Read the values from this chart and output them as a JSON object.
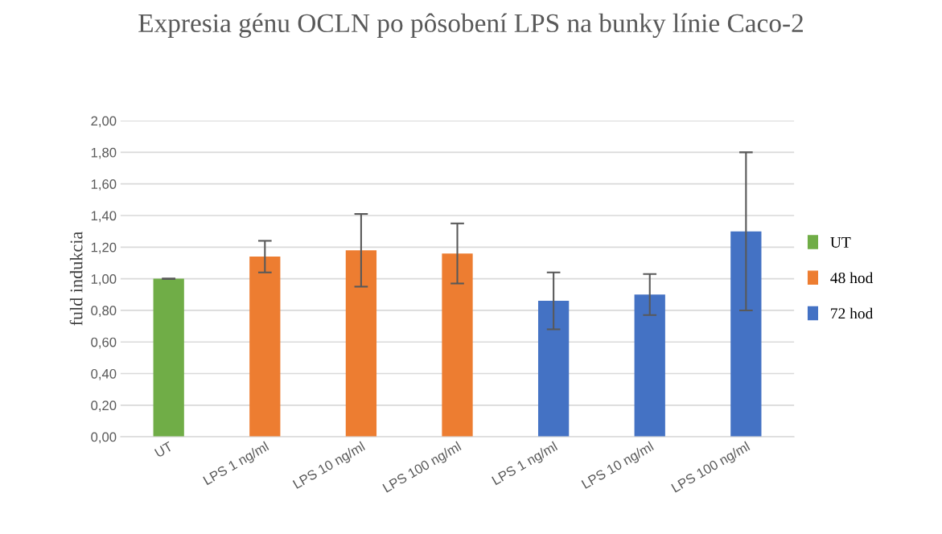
{
  "chart_data": {
    "type": "bar",
    "title": "Expresia génu OCLN po pôsobení LPS na bunky línie Caco-2",
    "ylabel": "fuld indukcia",
    "categories": [
      "UT",
      "LPS 1 ng/ml",
      "LPS 10 ng/ml",
      "LPS 100 ng/ml",
      "LPS 1 ng/ml",
      "LPS 10 ng/ml",
      "LPS 100 ng/ml"
    ],
    "series": [
      {
        "name": "UT",
        "color": "#70ad47",
        "values": [
          1.0,
          null,
          null,
          null,
          null,
          null,
          null
        ],
        "errors": [
          0.0,
          null,
          null,
          null,
          null,
          null,
          null
        ]
      },
      {
        "name": "48 hod",
        "color": "#ed7d31",
        "values": [
          null,
          1.14,
          1.18,
          1.16,
          null,
          null,
          null
        ],
        "errors": [
          null,
          0.1,
          0.23,
          0.19,
          null,
          null,
          null
        ]
      },
      {
        "name": "72 hod",
        "color": "#4472c4",
        "values": [
          null,
          null,
          null,
          null,
          0.86,
          0.9,
          1.3
        ],
        "errors": [
          null,
          null,
          null,
          null,
          0.18,
          0.13,
          0.5
        ]
      }
    ],
    "ylim": [
      0,
      2
    ],
    "yticks": [
      {
        "value": 0,
        "label": "0,00"
      },
      {
        "value": 0.2,
        "label": "0,20"
      },
      {
        "value": 0.4,
        "label": "0,40"
      },
      {
        "value": 0.6,
        "label": "0,60"
      },
      {
        "value": 0.8,
        "label": "0,80"
      },
      {
        "value": 1.0,
        "label": "1,00"
      },
      {
        "value": 1.2,
        "label": "1,20"
      },
      {
        "value": 1.4,
        "label": "1,40"
      },
      {
        "value": 1.6,
        "label": "1,60"
      },
      {
        "value": 1.8,
        "label": "1,80"
      },
      {
        "value": 2.0,
        "label": "2,00"
      }
    ],
    "grid": "y",
    "legend": "right"
  }
}
